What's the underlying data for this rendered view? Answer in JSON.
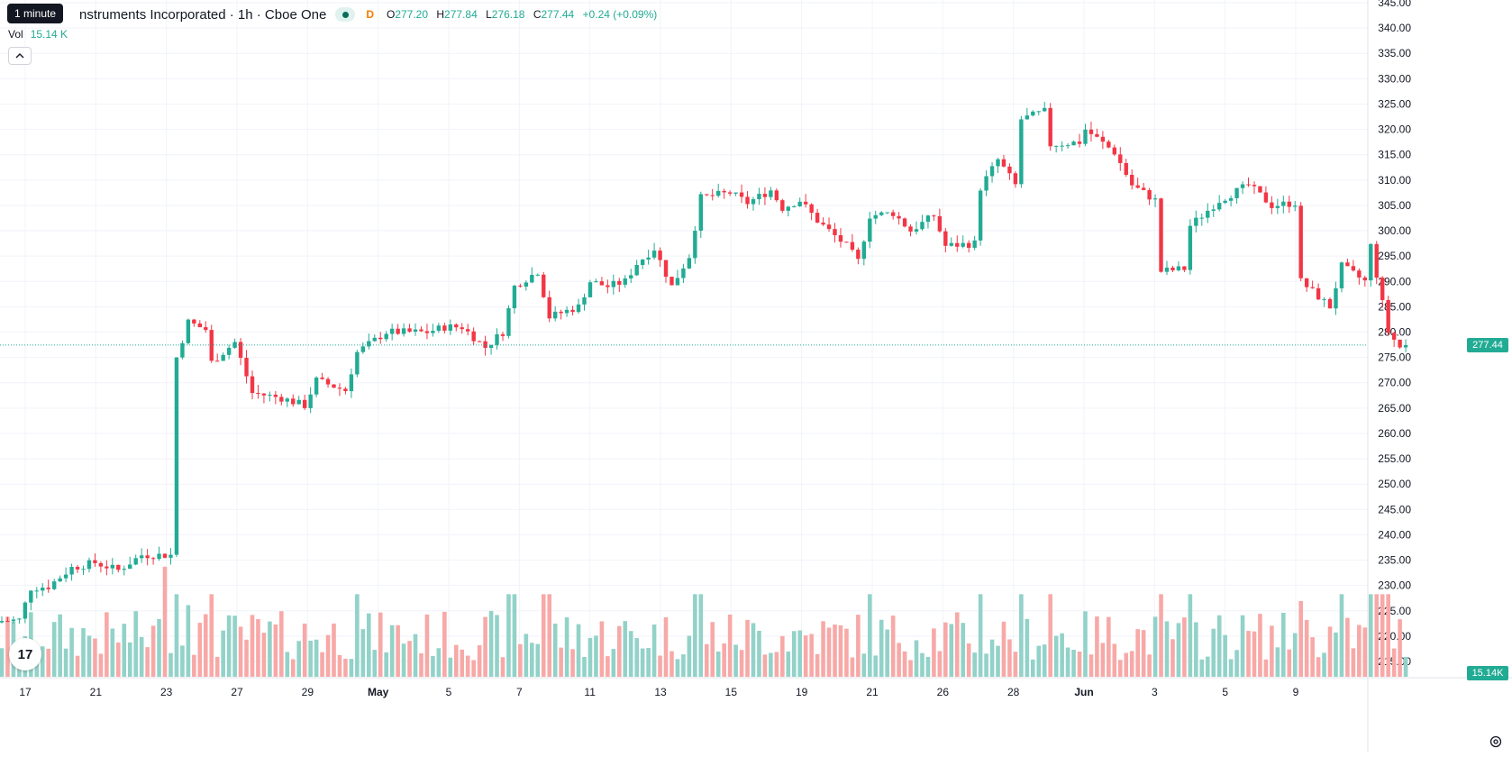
{
  "header": {
    "tooltip": "1 minute",
    "title": "nstruments Incorporated · 1h · Cboe One",
    "market_badge": "D",
    "o_label": "O",
    "o_value": "277.20",
    "h_label": "H",
    "h_value": "277.84",
    "l_label": "L",
    "l_value": "276.18",
    "c_label": "C",
    "c_value": "277.44",
    "change": "+0.24 (+0.09%)"
  },
  "volume": {
    "label": "Vol",
    "value": "15.14 K",
    "axis_tag": "15.14K"
  },
  "price_tag": "277.44",
  "logo_text": "17",
  "colors": {
    "up": "#22ab94",
    "down": "#f23645",
    "up_vol": "#92d2c8",
    "down_vol": "#f7a9a7",
    "grid": "#f0f3fa"
  },
  "icons": {
    "collapse": "chevron-up-icon",
    "logo": "tradingview-logo-icon",
    "settings": "gear-icon"
  },
  "chart_data": {
    "type": "candlestick",
    "interval": "1h",
    "y_axis": {
      "min": 215,
      "max": 345,
      "step": 5,
      "side": "right",
      "ticks": [
        "345.00",
        "340.00",
        "335.00",
        "330.00",
        "325.00",
        "320.00",
        "315.00",
        "310.00",
        "305.00",
        "300.00",
        "295.00",
        "290.00",
        "285.00",
        "280.00",
        "275.00",
        "270.00",
        "265.00",
        "260.00",
        "255.00",
        "250.00",
        "245.00",
        "240.00",
        "235.00",
        "230.00",
        "225.00",
        "220.00",
        "215.00"
      ]
    },
    "x_axis": {
      "labels": [
        "17",
        "21",
        "23",
        "27",
        "29",
        "May",
        "5",
        "7",
        "11",
        "13",
        "15",
        "19",
        "21",
        "26",
        "28",
        "Jun",
        "3",
        "5",
        "9"
      ],
      "bold": [
        "May",
        "Jun"
      ]
    },
    "last_price": 277.44,
    "anchors": [
      {
        "bar": 0,
        "c": 223.0
      },
      {
        "bar": 3,
        "c": 223.2
      },
      {
        "bar": 5,
        "c": 229.5
      },
      {
        "bar": 8,
        "c": 229.8
      },
      {
        "bar": 12,
        "c": 233.5
      },
      {
        "bar": 16,
        "c": 234.5
      },
      {
        "bar": 20,
        "c": 233.0
      },
      {
        "bar": 24,
        "c": 236.0
      },
      {
        "bar": 29,
        "c": 236.0
      },
      {
        "bar": 30,
        "c": 275.0
      },
      {
        "bar": 32,
        "c": 282.0
      },
      {
        "bar": 35,
        "c": 280.5
      },
      {
        "bar": 36,
        "c": 274.0
      },
      {
        "bar": 40,
        "c": 278.0
      },
      {
        "bar": 43,
        "c": 268.0
      },
      {
        "bar": 48,
        "c": 267.0
      },
      {
        "bar": 52,
        "c": 265.5
      },
      {
        "bar": 54,
        "c": 270.5
      },
      {
        "bar": 59,
        "c": 268.5
      },
      {
        "bar": 61,
        "c": 276.0
      },
      {
        "bar": 66,
        "c": 280.0
      },
      {
        "bar": 73,
        "c": 280.0
      },
      {
        "bar": 76,
        "c": 281.0
      },
      {
        "bar": 79,
        "c": 281.0
      },
      {
        "bar": 83,
        "c": 277.0
      },
      {
        "bar": 86,
        "c": 280.0
      },
      {
        "bar": 88,
        "c": 289.0
      },
      {
        "bar": 92,
        "c": 292.0
      },
      {
        "bar": 94,
        "c": 283.0
      },
      {
        "bar": 99,
        "c": 285.0
      },
      {
        "bar": 101,
        "c": 290.0
      },
      {
        "bar": 104,
        "c": 289.0
      },
      {
        "bar": 107,
        "c": 290.0
      },
      {
        "bar": 109,
        "c": 293.5
      },
      {
        "bar": 112,
        "c": 296.5
      },
      {
        "bar": 115,
        "c": 289.0
      },
      {
        "bar": 118,
        "c": 295.0
      },
      {
        "bar": 120,
        "c": 306.5
      },
      {
        "bar": 125,
        "c": 307.5
      },
      {
        "bar": 128,
        "c": 305.5
      },
      {
        "bar": 132,
        "c": 308.0
      },
      {
        "bar": 134,
        "c": 304.5
      },
      {
        "bar": 137,
        "c": 306.0
      },
      {
        "bar": 140,
        "c": 302.0
      },
      {
        "bar": 145,
        "c": 297.0
      },
      {
        "bar": 147,
        "c": 294.0
      },
      {
        "bar": 149,
        "c": 303.0
      },
      {
        "bar": 153,
        "c": 303.5
      },
      {
        "bar": 156,
        "c": 300.0
      },
      {
        "bar": 160,
        "c": 303.0
      },
      {
        "bar": 162,
        "c": 297.0
      },
      {
        "bar": 167,
        "c": 297.5
      },
      {
        "bar": 168,
        "c": 308.5
      },
      {
        "bar": 171,
        "c": 314.0
      },
      {
        "bar": 174,
        "c": 309.0
      },
      {
        "bar": 175,
        "c": 322.0
      },
      {
        "bar": 179,
        "c": 323.5
      },
      {
        "bar": 180,
        "c": 317.0
      },
      {
        "bar": 185,
        "c": 317.5
      },
      {
        "bar": 186,
        "c": 320.0
      },
      {
        "bar": 191,
        "c": 315.5
      },
      {
        "bar": 194,
        "c": 309.0
      },
      {
        "bar": 198,
        "c": 306.0
      },
      {
        "bar": 199,
        "c": 292.0
      },
      {
        "bar": 203,
        "c": 292.5
      },
      {
        "bar": 204,
        "c": 301.0
      },
      {
        "bar": 209,
        "c": 306.0
      },
      {
        "bar": 214,
        "c": 309.0
      },
      {
        "bar": 218,
        "c": 305.0
      },
      {
        "bar": 222,
        "c": 305.5
      },
      {
        "bar": 223,
        "c": 290.0
      },
      {
        "bar": 228,
        "c": 285.0
      },
      {
        "bar": 230,
        "c": 293.0
      },
      {
        "bar": 234,
        "c": 290.0
      },
      {
        "bar": 235,
        "c": 297.0
      },
      {
        "bar": 238,
        "c": 280.0
      },
      {
        "bar": 240,
        "c": 277.0
      },
      {
        "bar": 241,
        "c": 277.44
      }
    ]
  }
}
